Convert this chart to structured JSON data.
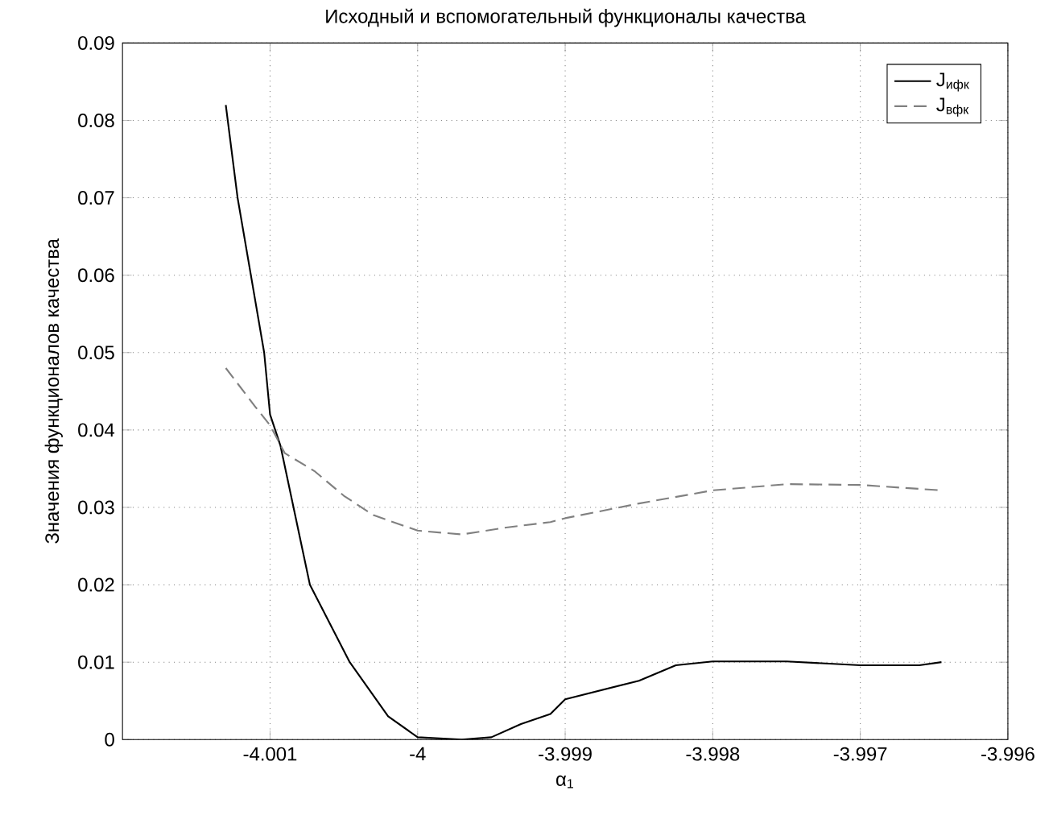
{
  "chart_data": {
    "type": "line",
    "title": "Исходный и вспомогательный функционалы качества",
    "xlabel": "α$_{1}$",
    "ylabel": "Значения функционалов качества",
    "xlim": [
      -4.002,
      -3.996
    ],
    "xticks": [
      -4.001,
      -4,
      -3.999,
      -3.998,
      -3.997,
      -3.996
    ],
    "ylim": [
      0,
      0.09
    ],
    "yticks": [
      0,
      0.01,
      0.02,
      0.03,
      0.04,
      0.05,
      0.06,
      0.07,
      0.08,
      0.09
    ],
    "grid": true,
    "legend": "top right",
    "series": [
      {
        "name": "J$_{ифк}$",
        "color": "#000000",
        "line_style": "solid",
        "x": [
          -4.0013,
          -4.00122,
          -4.00113,
          -4.00104,
          -4.001,
          -4.00093,
          -4.00073,
          -4.00046,
          -4.0002,
          -4.0,
          -3.9997,
          -3.9995,
          -3.9993,
          -3.9991,
          -3.999,
          -3.9985,
          -3.99825,
          -3.998,
          -3.9975,
          -3.997,
          -3.9966,
          -3.99645
        ],
        "values": [
          0.082,
          0.07,
          0.06,
          0.05,
          0.042,
          0.038,
          0.02,
          0.01,
          0.003,
          0.0003,
          0.0,
          0.0003,
          0.002,
          0.0033,
          0.0052,
          0.0076,
          0.0096,
          0.0101,
          0.0101,
          0.0096,
          0.0096,
          0.01
        ]
      },
      {
        "name": "J$_{вфк}$",
        "color": "#808080",
        "line_style": "dashed",
        "x": [
          -4.0013,
          -4.0011,
          -4.001,
          -4.0009,
          -4.0007,
          -4.0005,
          -4.0003,
          -4.0,
          -3.9997,
          -3.9994,
          -3.9991,
          -3.999,
          -3.9985,
          -3.998,
          -3.9975,
          -3.997,
          -3.99645
        ],
        "values": [
          0.048,
          0.043,
          0.0406,
          0.037,
          0.0347,
          0.0315,
          0.029,
          0.027,
          0.0265,
          0.0274,
          0.0281,
          0.0286,
          0.0305,
          0.0322,
          0.033,
          0.0329,
          0.0322
        ]
      }
    ]
  }
}
